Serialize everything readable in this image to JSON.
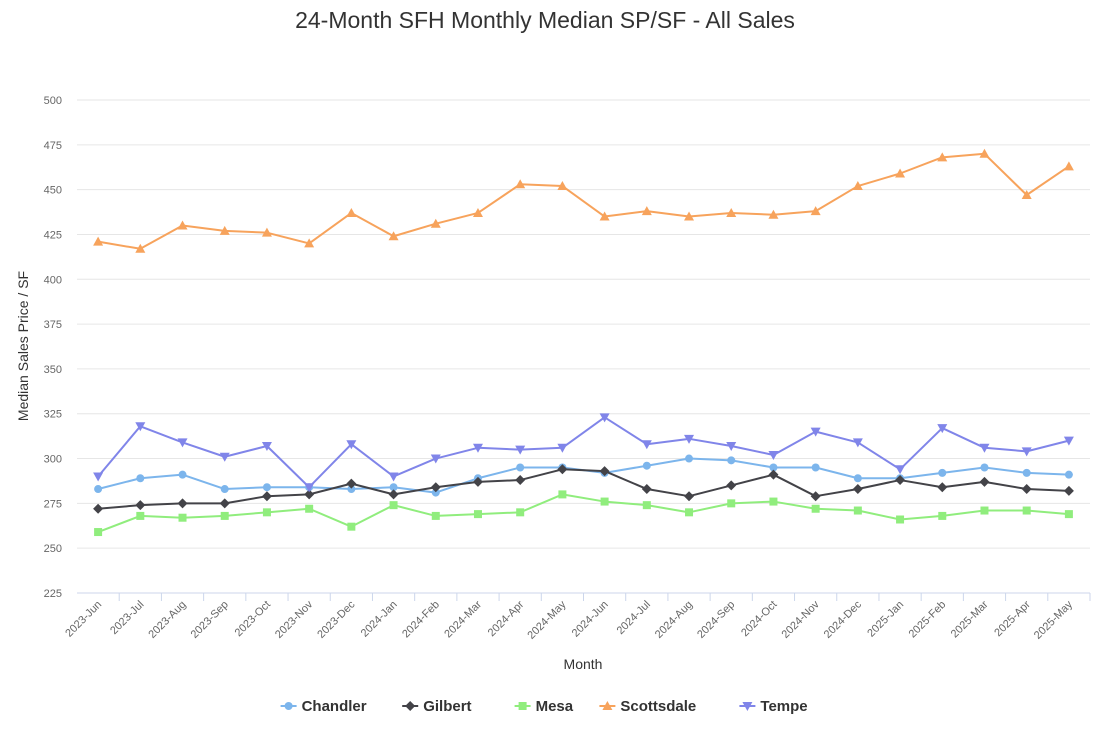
{
  "chart_data": {
    "type": "line",
    "title": "24-Month SFH Monthly Median SP/SF - All Sales",
    "xlabel": "Month",
    "ylabel": "Median Sales Price / SF",
    "ylim": [
      225,
      500
    ],
    "yticks": [
      225,
      250,
      275,
      300,
      325,
      350,
      375,
      400,
      425,
      450,
      475,
      500
    ],
    "grid": true,
    "legend_position": "bottom",
    "categories": [
      "2023-Jun",
      "2023-Jul",
      "2023-Aug",
      "2023-Sep",
      "2023-Oct",
      "2023-Nov",
      "2023-Dec",
      "2024-Jan",
      "2024-Feb",
      "2024-Mar",
      "2024-Apr",
      "2024-May",
      "2024-Jun",
      "2024-Jul",
      "2024-Aug",
      "2024-Sep",
      "2024-Oct",
      "2024-Nov",
      "2024-Dec",
      "2025-Jan",
      "2025-Feb",
      "2025-Mar",
      "2025-Apr",
      "2025-May"
    ],
    "series": [
      {
        "name": "Chandler",
        "color": "#7cb5ec",
        "marker": "circle",
        "values": [
          283,
          289,
          291,
          283,
          284,
          284,
          283,
          284,
          281,
          289,
          295,
          295,
          292,
          296,
          300,
          299,
          295,
          295,
          289,
          289,
          292,
          295,
          292,
          291
        ]
      },
      {
        "name": "Gilbert",
        "color": "#434348",
        "marker": "diamond",
        "values": [
          272,
          274,
          275,
          275,
          279,
          280,
          286,
          280,
          284,
          287,
          288,
          294,
          293,
          283,
          279,
          285,
          291,
          279,
          283,
          288,
          284,
          287,
          283,
          282
        ]
      },
      {
        "name": "Mesa",
        "color": "#90ed7d",
        "marker": "square",
        "values": [
          259,
          268,
          267,
          268,
          270,
          272,
          262,
          274,
          268,
          269,
          270,
          280,
          276,
          274,
          270,
          275,
          276,
          272,
          271,
          266,
          268,
          271,
          271,
          269
        ]
      },
      {
        "name": "Scottsdale",
        "color": "#f7a35c",
        "marker": "triangle",
        "values": [
          421,
          417,
          430,
          427,
          426,
          420,
          437,
          424,
          431,
          437,
          453,
          452,
          435,
          438,
          435,
          437,
          436,
          438,
          452,
          459,
          468,
          470,
          447,
          463
        ]
      },
      {
        "name": "Tempe",
        "color": "#8085e9",
        "marker": "triangle-down",
        "values": [
          290,
          318,
          309,
          301,
          307,
          284,
          308,
          290,
          300,
          306,
          305,
          306,
          323,
          308,
          311,
          307,
          302,
          315,
          309,
          294,
          317,
          306,
          304,
          310
        ]
      }
    ]
  }
}
